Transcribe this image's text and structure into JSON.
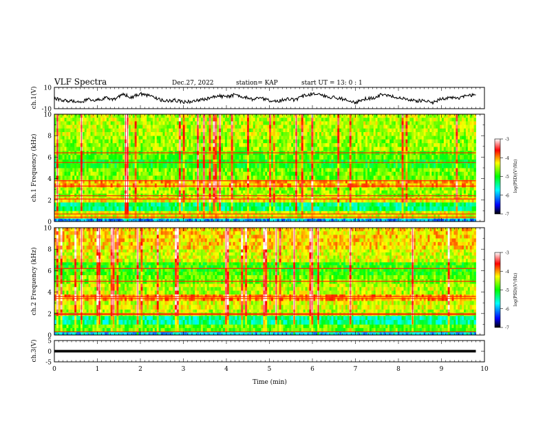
{
  "header": {
    "title": "VLF Spectra",
    "date": "Dec.27, 2022",
    "station": "station= KAP",
    "start": "start  UT =  13: 0  : 1"
  },
  "colors": {
    "waveform": "#000000",
    "colormap": [
      "#000000",
      "#0000ff",
      "#00ffff",
      "#00ff00",
      "#ffff00",
      "#ff0000",
      "#ffffff"
    ]
  },
  "chart_data": [
    {
      "type": "line",
      "panel": "ch1-waveform",
      "ylabel": "ch.1(V)",
      "ylim": [
        -10,
        10
      ],
      "yticks": [
        "10",
        "-10"
      ],
      "xlim": [
        0,
        10
      ],
      "x": [
        0,
        0.2,
        0.4,
        0.6,
        0.8,
        1.0,
        1.2,
        1.4,
        1.6,
        1.8,
        2.0,
        2.2,
        2.4,
        2.6,
        2.8,
        3.0,
        3.2,
        3.4,
        3.6,
        3.8,
        4.0,
        4.2,
        4.4,
        4.6,
        4.8,
        5.0,
        5.2,
        5.4,
        5.6,
        5.8,
        6.0,
        6.2,
        6.4,
        6.6,
        6.8,
        7.0,
        7.2,
        7.4,
        7.6,
        7.8,
        8.0,
        8.2,
        8.4,
        8.6,
        8.8,
        9.0,
        9.2,
        9.4,
        9.6,
        9.8
      ],
      "values": [
        0,
        -2,
        -3,
        -4,
        -1,
        -2,
        0,
        -1,
        3,
        1,
        4,
        2,
        -1,
        -3,
        -2,
        -4,
        -3,
        -2,
        0,
        2,
        1,
        3,
        1,
        -1,
        0,
        -2,
        -3,
        -1,
        -2,
        2,
        4,
        3,
        1,
        0,
        -2,
        -4,
        -1,
        0,
        3,
        2,
        0,
        -1,
        -3,
        -2,
        -4,
        -1,
        1,
        0,
        2,
        3
      ]
    },
    {
      "type": "heatmap",
      "panel": "ch1-spectrogram",
      "ylabel": "ch.1  Frequency (kHz)",
      "ylim": [
        0,
        10
      ],
      "yticks": [
        "0",
        "2",
        "4",
        "6",
        "8",
        "10"
      ],
      "xlim": [
        0,
        10
      ],
      "colorbar": {
        "label": "log(PSD)(V²/Hz)",
        "range": [
          -7,
          -3
        ],
        "ticks": [
          "-3",
          "-4",
          "-5",
          "-6",
          "-7"
        ]
      },
      "bands": [
        {
          "freq": [
            0,
            0.3
          ],
          "level": -6.0
        },
        {
          "freq": [
            0.3,
            1.0
          ],
          "level": -4.4
        },
        {
          "freq": [
            1.0,
            1.8
          ],
          "level": -5.3
        },
        {
          "freq": [
            1.8,
            2.3
          ],
          "level": -4.3
        },
        {
          "freq": [
            2.3,
            3.2
          ],
          "level": -4.6
        },
        {
          "freq": [
            3.2,
            3.9
          ],
          "level": -4.1
        },
        {
          "freq": [
            3.9,
            5.0
          ],
          "level": -4.7
        },
        {
          "freq": [
            5.0,
            5.8
          ],
          "level": -5.0
        },
        {
          "freq": [
            5.8,
            6.6
          ],
          "level": -4.8
        },
        {
          "freq": [
            6.6,
            8.0
          ],
          "level": -4.6
        },
        {
          "freq": [
            8.0,
            10.0
          ],
          "level": -4.5
        }
      ],
      "lines_khz": [
        0.4,
        0.7,
        2.1,
        2.4,
        3.3,
        3.8,
        5.5,
        6.4
      ]
    },
    {
      "type": "heatmap",
      "panel": "ch2-spectrogram",
      "ylabel": "ch.2  Frequency (kHz)",
      "ylim": [
        0,
        10
      ],
      "yticks": [
        "0",
        "2",
        "4",
        "6",
        "8",
        "10"
      ],
      "xlim": [
        0,
        10
      ],
      "colorbar": {
        "label": "log(PSD)(V²/Hz)",
        "range": [
          -7,
          -3
        ],
        "ticks": [
          "-3",
          "-4",
          "-5",
          "-6",
          "-7"
        ]
      },
      "bands": [
        {
          "freq": [
            0,
            0.3
          ],
          "level": -5.8
        },
        {
          "freq": [
            0.3,
            1.0
          ],
          "level": -4.8
        },
        {
          "freq": [
            1.0,
            1.8
          ],
          "level": -5.4
        },
        {
          "freq": [
            1.8,
            2.4
          ],
          "level": -4.5
        },
        {
          "freq": [
            2.4,
            3.2
          ],
          "level": -4.4
        },
        {
          "freq": [
            3.2,
            3.8
          ],
          "level": -4.0
        },
        {
          "freq": [
            3.8,
            4.8
          ],
          "level": -4.5
        },
        {
          "freq": [
            4.8,
            5.6
          ],
          "level": -4.7
        },
        {
          "freq": [
            5.6,
            6.8
          ],
          "level": -4.9
        },
        {
          "freq": [
            6.8,
            8.0
          ],
          "level": -4.4
        },
        {
          "freq": [
            8.0,
            10.0
          ],
          "level": -4.2
        }
      ],
      "lines_khz": [
        0.3,
        1.9,
        2.0,
        3.4,
        3.6,
        5.0,
        6.2
      ]
    },
    {
      "type": "line",
      "panel": "ch3-waveform",
      "ylabel": "ch.3(V)",
      "ylim": [
        -5,
        5
      ],
      "yticks": [
        "5",
        "0",
        "-5"
      ],
      "xlim": [
        0,
        10
      ],
      "xlabel": "Time  (min)",
      "xticks": [
        "0",
        "1",
        "2",
        "3",
        "4",
        "5",
        "6",
        "7",
        "8",
        "9",
        "10"
      ],
      "x": [
        0,
        9.8
      ],
      "values": [
        0,
        0
      ],
      "band_halfwidth": 0.6
    }
  ]
}
